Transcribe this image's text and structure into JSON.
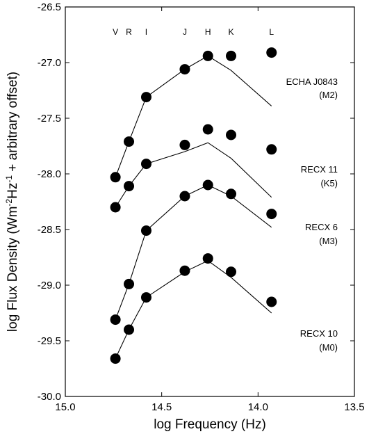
{
  "chart_data": {
    "type": "scatter",
    "title": "",
    "xlabel": "log Frequency (Hz)",
    "ylabel_parts": [
      "log Flux Density (Wm",
      "-2",
      "Hz",
      "-1",
      " + arbitrary offset)"
    ],
    "xlim": [
      15.0,
      13.5
    ],
    "ylim": [
      -30.0,
      -26.5
    ],
    "x_ticks": [
      15.0,
      14.5,
      14.0,
      13.5
    ],
    "x_tick_labels": [
      "15.0",
      "14.5",
      "14.0",
      "13.5"
    ],
    "y_ticks": [
      -30.0,
      -29.5,
      -29.0,
      -28.5,
      -28.0,
      -27.5,
      -27.0,
      -26.5
    ],
    "y_tick_labels": [
      "-30.0",
      "-29.5",
      "-29.0",
      "-28.5",
      "-28.0",
      "-27.5",
      "-27.0",
      "-26.5"
    ],
    "grid": false,
    "bands": [
      {
        "label": "V",
        "x": 14.74
      },
      {
        "label": "R",
        "x": 14.67
      },
      {
        "label": "I",
        "x": 14.58
      },
      {
        "label": "J",
        "x": 14.38
      },
      {
        "label": "H",
        "x": 14.26
      },
      {
        "label": "K",
        "x": 14.14
      },
      {
        "label": "L",
        "x": 13.93
      }
    ],
    "series": [
      {
        "name_lines": [
          "ECHA J0843",
          "(M2)"
        ],
        "points": [
          [
            14.74,
            -28.03
          ],
          [
            14.67,
            -27.71
          ],
          [
            14.58,
            -27.31
          ],
          [
            14.38,
            -27.06
          ],
          [
            14.26,
            -26.94
          ],
          [
            14.14,
            -26.94
          ],
          [
            13.93,
            -26.91
          ]
        ],
        "model": [
          [
            14.74,
            -28.03
          ],
          [
            14.67,
            -27.71
          ],
          [
            14.58,
            -27.31
          ],
          [
            14.38,
            -27.06
          ],
          [
            14.26,
            -26.94
          ],
          [
            14.14,
            -27.07
          ],
          [
            13.93,
            -27.39
          ]
        ]
      },
      {
        "name_lines": [
          "RECX 11",
          "(K5)"
        ],
        "points": [
          [
            14.74,
            -28.3
          ],
          [
            14.67,
            -28.11
          ],
          [
            14.58,
            -27.91
          ],
          [
            14.38,
            -27.74
          ],
          [
            14.26,
            -27.6
          ],
          [
            14.14,
            -27.65
          ],
          [
            13.93,
            -27.78
          ]
        ],
        "model": [
          [
            14.74,
            -28.3
          ],
          [
            14.67,
            -28.11
          ],
          [
            14.58,
            -27.91
          ],
          [
            14.38,
            -27.8
          ],
          [
            14.26,
            -27.72
          ],
          [
            14.14,
            -27.86
          ],
          [
            13.93,
            -28.21
          ]
        ]
      },
      {
        "name_lines": [
          "RECX 6",
          "(M3)"
        ],
        "points": [
          [
            14.74,
            -29.31
          ],
          [
            14.67,
            -28.99
          ],
          [
            14.58,
            -28.51
          ],
          [
            14.38,
            -28.2
          ],
          [
            14.26,
            -28.1
          ],
          [
            14.14,
            -28.18
          ],
          [
            13.93,
            -28.36
          ]
        ],
        "model": [
          [
            14.74,
            -29.31
          ],
          [
            14.67,
            -28.99
          ],
          [
            14.58,
            -28.51
          ],
          [
            14.38,
            -28.2
          ],
          [
            14.26,
            -28.1
          ],
          [
            14.14,
            -28.2
          ],
          [
            13.93,
            -28.48
          ]
        ]
      },
      {
        "name_lines": [
          "RECX 10",
          "(M0)"
        ],
        "points": [
          [
            14.74,
            -29.66
          ],
          [
            14.67,
            -29.4
          ],
          [
            14.58,
            -29.11
          ],
          [
            14.38,
            -28.87
          ],
          [
            14.26,
            -28.76
          ],
          [
            14.14,
            -28.88
          ],
          [
            13.93,
            -29.15
          ]
        ],
        "model": [
          [
            14.74,
            -29.66
          ],
          [
            14.67,
            -29.4
          ],
          [
            14.58,
            -29.11
          ],
          [
            14.38,
            -28.88
          ],
          [
            14.26,
            -28.78
          ],
          [
            14.14,
            -28.93
          ],
          [
            13.93,
            -29.25
          ]
        ]
      }
    ]
  }
}
